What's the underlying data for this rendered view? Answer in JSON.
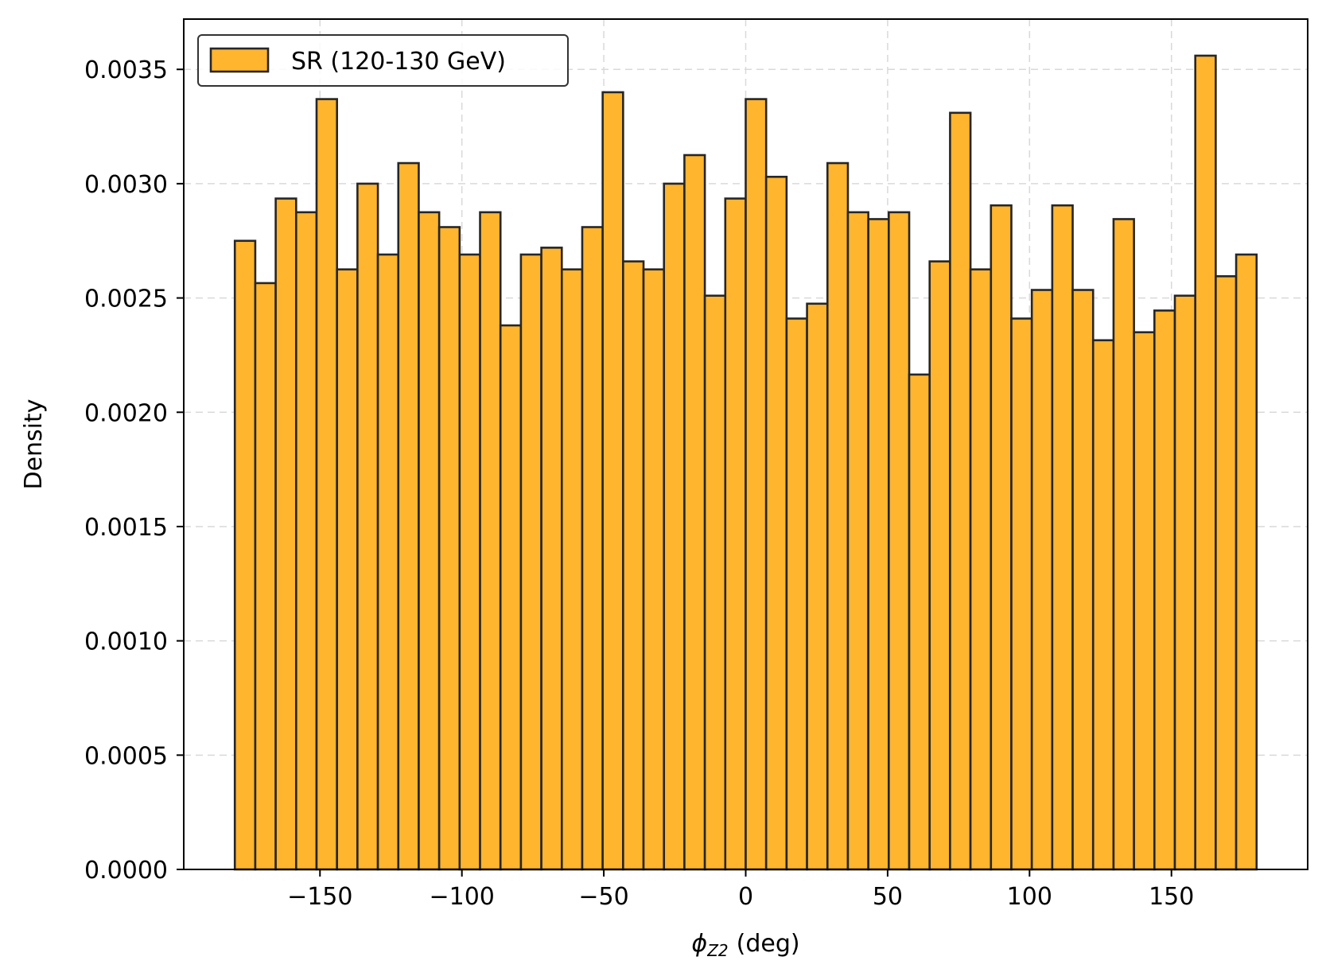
{
  "chart_data": {
    "type": "bar",
    "histogram": true,
    "xlabel": "(deg)",
    "xlabel_symbol": "ϕ",
    "xlabel_subscript": "Z2",
    "ylabel": "Density",
    "xlim": [
      -198,
      198
    ],
    "ylim": [
      0,
      0.00372
    ],
    "xticks": [
      -150,
      -100,
      -50,
      0,
      50,
      100,
      150
    ],
    "xtick_labels": [
      "−150",
      "−100",
      "−50",
      "0",
      "50",
      "100",
      "150"
    ],
    "yticks": [
      0,
      0.0005,
      0.001,
      0.0015,
      0.002,
      0.0025,
      0.003,
      0.0035
    ],
    "ytick_labels": [
      "0.0000",
      "0.0005",
      "0.0010",
      "0.0015",
      "0.0020",
      "0.0025",
      "0.0030",
      "0.0035"
    ],
    "grid": true,
    "legend_position": "top-left",
    "bin_start": -180,
    "bin_end": 180,
    "bar_color": "#ffb52e",
    "edge_color": "#262626",
    "series": [
      {
        "name": "SR (120-130 GeV)",
        "values": [
          0.00275,
          0.002565,
          0.002935,
          0.002875,
          0.00337,
          0.002625,
          0.003,
          0.00269,
          0.00309,
          0.002875,
          0.00281,
          0.00269,
          0.002875,
          0.00238,
          0.00269,
          0.00272,
          0.002625,
          0.00281,
          0.0034,
          0.00266,
          0.002625,
          0.003,
          0.003125,
          0.00251,
          0.002935,
          0.00337,
          0.00303,
          0.00241,
          0.002475,
          0.00309,
          0.002875,
          0.002845,
          0.002875,
          0.002165,
          0.00266,
          0.00331,
          0.002625,
          0.002905,
          0.00241,
          0.002535,
          0.002905,
          0.002535,
          0.002315,
          0.002845,
          0.00235,
          0.002445,
          0.00251,
          0.00356,
          0.002595,
          0.00269
        ]
      }
    ]
  }
}
